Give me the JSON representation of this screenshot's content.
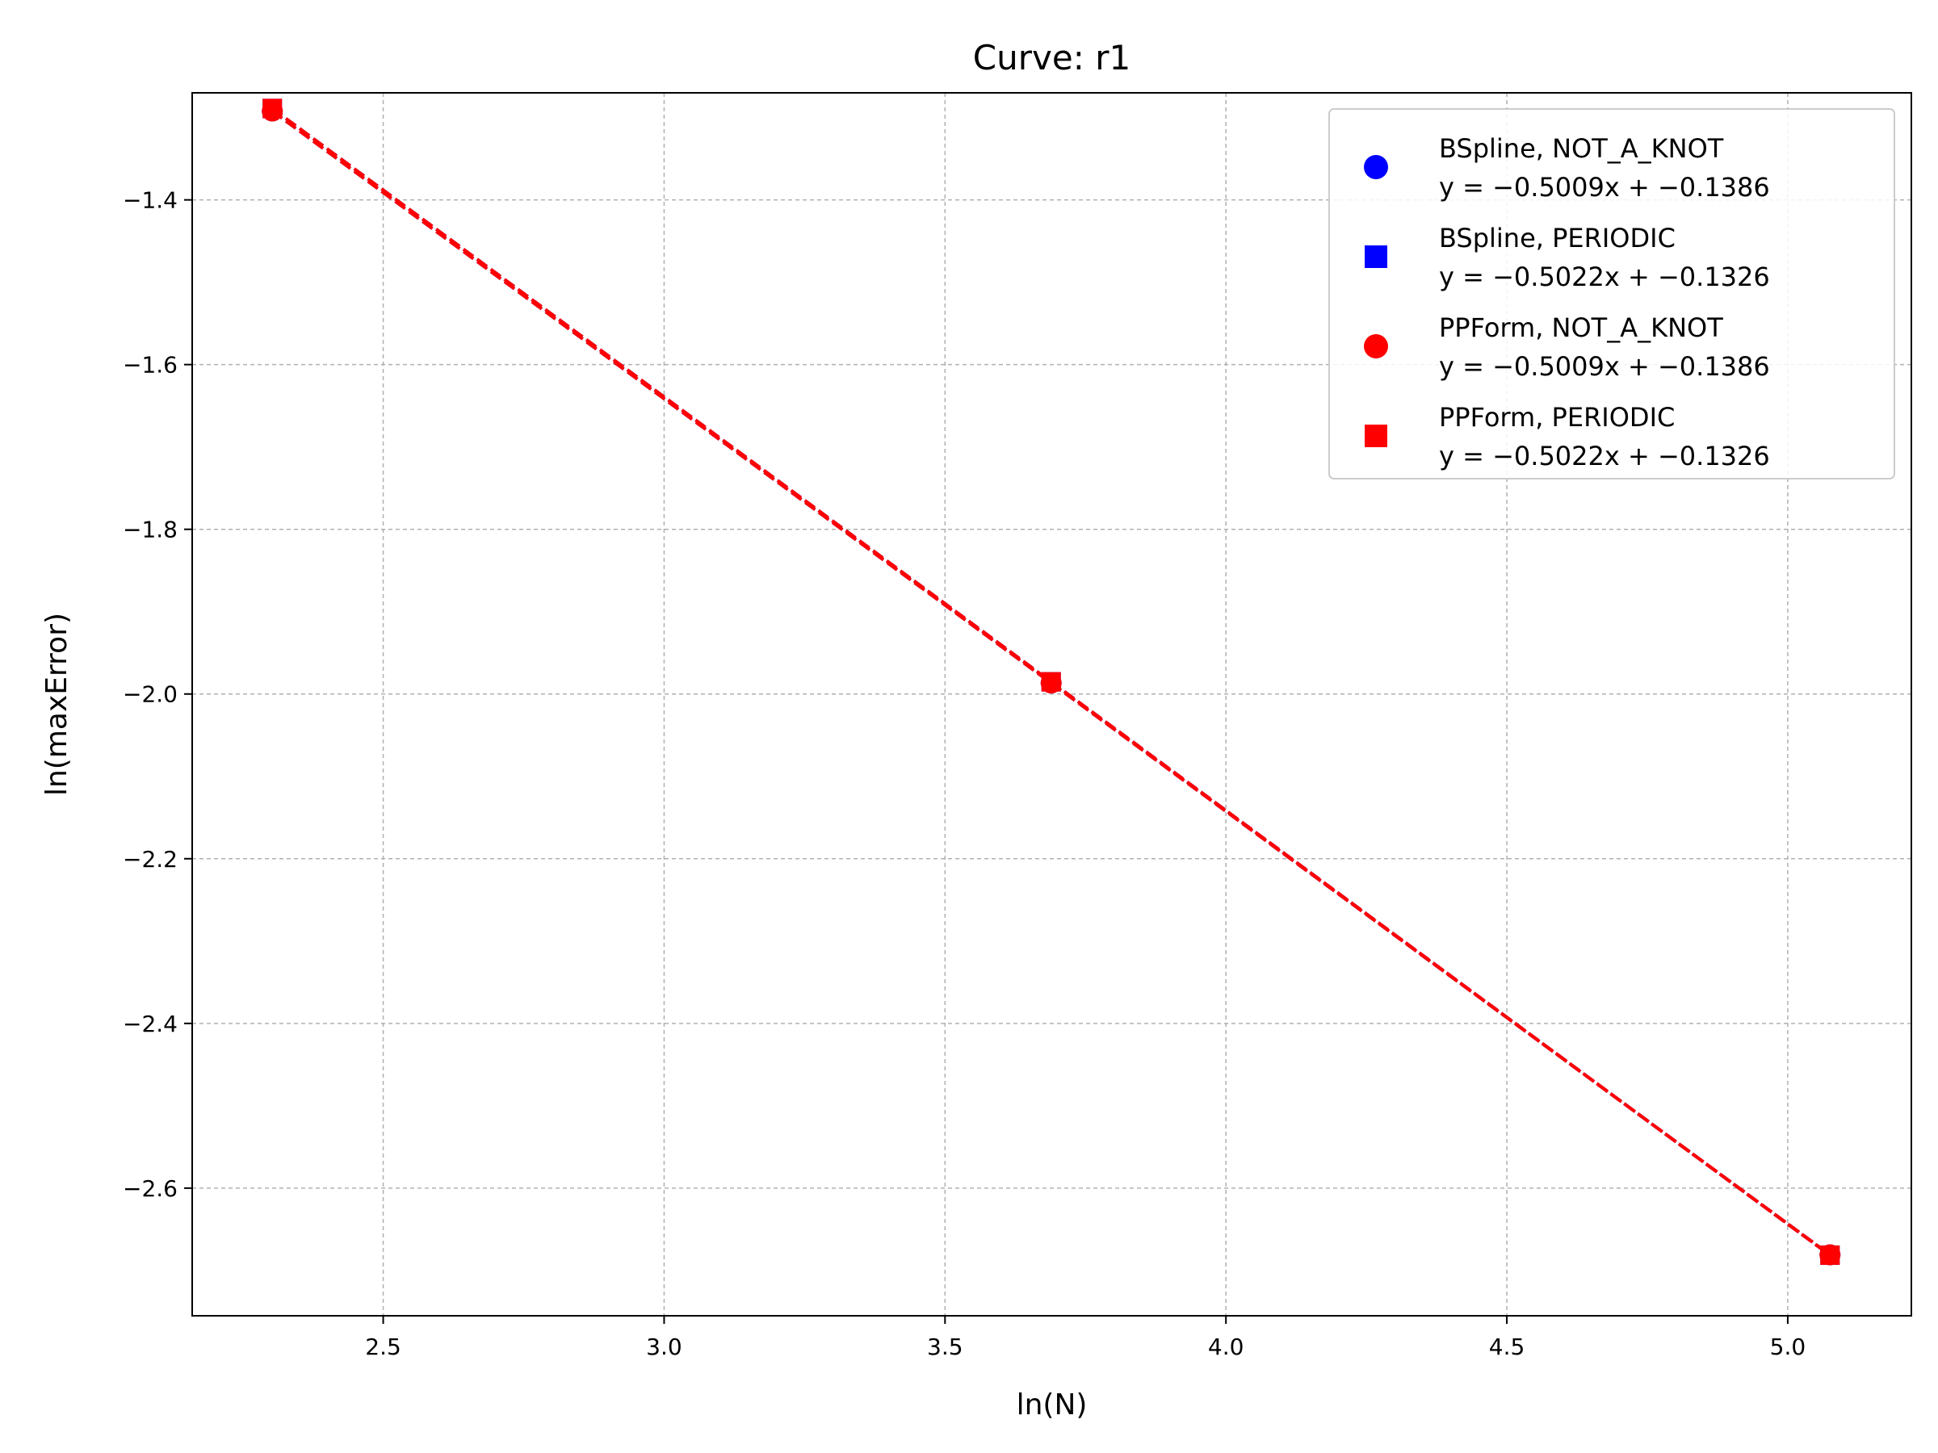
{
  "chart_data": {
    "type": "line",
    "title": "Curve: r1",
    "xlabel": "ln(N)",
    "ylabel": "ln(maxError)",
    "xlim": [
      2.16,
      5.22
    ],
    "ylim": [
      -2.755,
      -1.27
    ],
    "xticks": [
      2.5,
      3.0,
      3.5,
      4.0,
      4.5,
      5.0
    ],
    "xtick_labels": [
      "2.5",
      "3.0",
      "3.5",
      "4.0",
      "4.5",
      "5.0"
    ],
    "yticks": [
      -1.4,
      -1.6,
      -1.8,
      -2.0,
      -2.2,
      -2.4,
      -2.6
    ],
    "ytick_labels": [
      "−1.4",
      "−1.6",
      "−1.8",
      "−2.0",
      "−2.2",
      "−2.4",
      "−2.6"
    ],
    "grid": true,
    "legend_position": "top-right",
    "series": [
      {
        "name": "BSpline, NOT_A_KNOT",
        "equation": "y = −0.5009x + −0.1386",
        "color": "#0000ff",
        "marker": "circle",
        "x": [
          2.3026,
          3.6889,
          5.0752
        ],
        "y": [
          -1.2921,
          -1.9866,
          -2.681
        ]
      },
      {
        "name": "BSpline, PERIODIC",
        "equation": "y = −0.5022x + −0.1326",
        "color": "#0000ff",
        "marker": "square",
        "x": [
          2.3026,
          3.6889,
          5.0752
        ],
        "y": [
          -1.289,
          -1.9852,
          -2.6814
        ]
      },
      {
        "name": "PPForm, NOT_A_KNOT",
        "equation": "y = −0.5009x + −0.1386",
        "color": "#ff0000",
        "marker": "circle",
        "x": [
          2.3026,
          3.6889,
          5.0752
        ],
        "y": [
          -1.2921,
          -1.9866,
          -2.681
        ]
      },
      {
        "name": "PPForm, PERIODIC",
        "equation": "y = −0.5022x + −0.1326",
        "color": "#ff0000",
        "marker": "square",
        "x": [
          2.3026,
          3.6889,
          5.0752
        ],
        "y": [
          -1.289,
          -1.9852,
          -2.6814
        ]
      }
    ]
  }
}
